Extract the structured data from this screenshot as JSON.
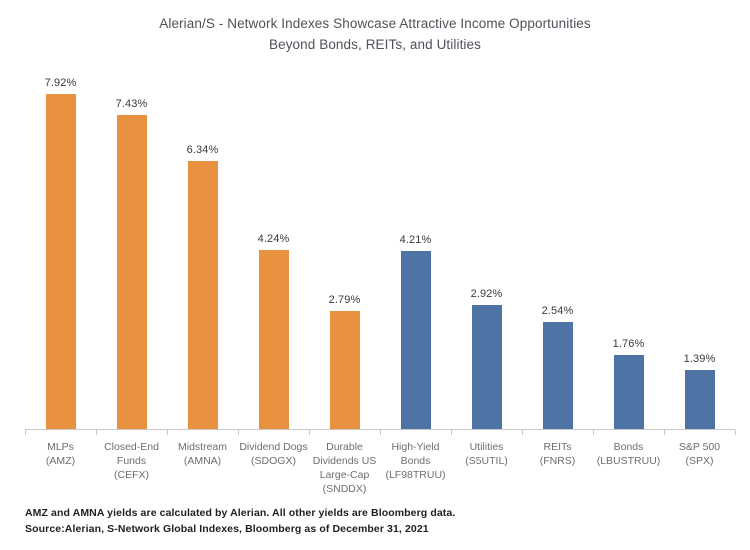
{
  "title": "Alerian/S - Network Indexes Showcase Attractive Income Opportunities\nBeyond Bonds, REITs, and Utilities",
  "chart_data": {
    "type": "bar",
    "title": "Alerian/S - Network Indexes Showcase Attractive Income Opportunities Beyond Bonds, REITs, and Utilities",
    "categories": [
      "MLPs\n(AMZ)",
      "Closed-End\nFunds\n(CEFX)",
      "Midstream\n(AMNA)",
      "Dividend Dogs\n(SDOGX)",
      "Durable\nDividends US\nLarge-Cap\n(SNDDX)",
      "High-Yield\nBonds\n(LF98TRUU)",
      "Utilities\n(S5UTIL)",
      "REITs\n(FNRS)",
      "Bonds\n(LBUSTRUU)",
      "S&P 500\n(SPX)"
    ],
    "values": [
      7.92,
      7.43,
      6.34,
      4.24,
      2.79,
      4.21,
      2.92,
      2.54,
      1.76,
      1.39
    ],
    "value_labels": [
      "7.92%",
      "7.43%",
      "6.34%",
      "4.24%",
      "2.79%",
      "4.21%",
      "2.92%",
      "2.54%",
      "1.76%",
      "1.39%"
    ],
    "colors": [
      "#E8913F",
      "#E8913F",
      "#E8913F",
      "#E8913F",
      "#E8913F",
      "#4E73A5",
      "#4E73A5",
      "#4E73A5",
      "#4E73A5",
      "#4E73A5"
    ],
    "color_legend": {
      "alerian_snetwork_indexes": "#E8913F",
      "benchmark_indexes": "#4E73A5"
    },
    "xlabel": "",
    "ylabel": "",
    "ylim": [
      0,
      8.7
    ],
    "grid": false,
    "legend": "none",
    "data_labels": "above bars, formatted as percent"
  },
  "footer": {
    "footnote": "AMZ and AMNA yields are calculated by Alerian. All other yields are Bloomberg data.",
    "source": "Source:Alerian, S-Network Global Indexes, Bloomberg as of December 31, 2021"
  }
}
